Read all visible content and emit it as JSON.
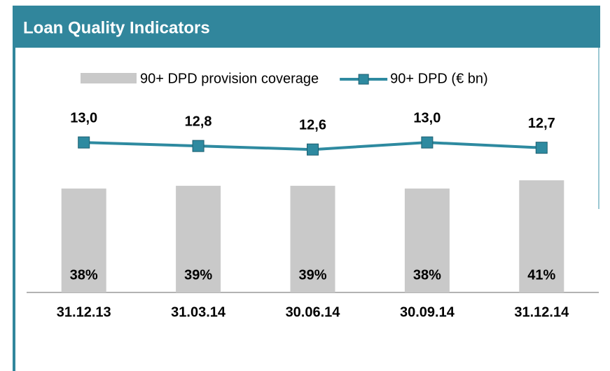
{
  "chart_data": {
    "type": "bar-line",
    "title": "Loan Quality Indicators",
    "categories": [
      "31.12.13",
      "31.03.14",
      "30.06.14",
      "30.09.14",
      "31.12.14"
    ],
    "series": [
      {
        "name": "90+ DPD provision coverage",
        "type": "bar",
        "color": "#c9c9c9",
        "axis": "y",
        "values": [
          38,
          39,
          39,
          38,
          41
        ],
        "value_labels": [
          "38%",
          "39%",
          "39%",
          "38%",
          "41%"
        ]
      },
      {
        "name": "90+ DPD (€ bn)",
        "type": "line",
        "color": "#2e8aa0",
        "axis": "y2",
        "values": [
          13.0,
          12.8,
          12.6,
          13.0,
          12.7
        ],
        "value_labels": [
          "13,0",
          "12,8",
          "12,6",
          "13,0",
          "12,7"
        ]
      }
    ],
    "ylim": [
      0,
      100
    ],
    "y2lim": [
      4.5,
      20
    ]
  }
}
